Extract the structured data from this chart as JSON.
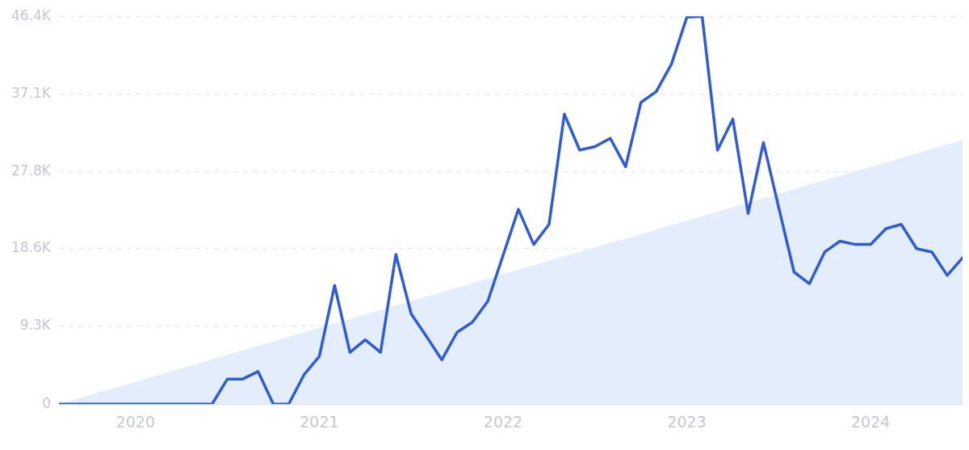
{
  "chart_data": {
    "type": "line",
    "x": [
      "2019-08",
      "2019-09",
      "2019-10",
      "2019-11",
      "2019-12",
      "2020-01",
      "2020-02",
      "2020-03",
      "2020-04",
      "2020-05",
      "2020-06",
      "2020-07",
      "2020-08",
      "2020-09",
      "2020-10",
      "2020-11",
      "2020-12",
      "2021-01",
      "2021-02",
      "2021-03",
      "2021-04",
      "2021-05",
      "2021-06",
      "2021-07",
      "2021-08",
      "2021-09",
      "2021-10",
      "2021-11",
      "2021-12",
      "2022-01",
      "2022-02",
      "2022-03",
      "2022-04",
      "2022-05",
      "2022-06",
      "2022-07",
      "2022-08",
      "2022-09",
      "2022-10",
      "2022-11",
      "2022-12",
      "2023-01",
      "2023-02",
      "2023-03",
      "2023-04",
      "2023-05",
      "2023-06",
      "2023-07",
      "2023-08",
      "2023-09",
      "2023-10",
      "2023-11",
      "2023-12",
      "2024-01",
      "2024-02",
      "2024-03",
      "2024-04",
      "2024-05",
      "2024-06",
      "2024-07"
    ],
    "series": [
      {
        "type": "area",
        "color": "#e3edfb",
        "x": [
          "2019-08",
          "2024-07"
        ],
        "values": [
          0,
          31600
        ]
      },
      {
        "type": "line",
        "color": "#2f5bd3",
        "values": [
          0,
          0,
          0,
          0,
          0,
          0,
          0,
          0,
          0,
          0,
          0,
          3000,
          3000,
          3900,
          0,
          0,
          3500,
          5700,
          14200,
          6200,
          7700,
          6200,
          17900,
          10800,
          8100,
          5300,
          8600,
          9800,
          12300,
          17800,
          23300,
          19100,
          21500,
          34700,
          30400,
          30800,
          31800,
          28400,
          36100,
          37400,
          40700,
          46300,
          46400,
          30400,
          34100,
          22800,
          31300,
          23500,
          15800,
          14400,
          18200,
          19500,
          19100,
          19100,
          21000,
          21500,
          18600,
          18200,
          15400,
          17500
        ]
      }
    ],
    "xlim": [
      "2019-08",
      "2024-07"
    ],
    "xticks": [
      "2020",
      "2021",
      "2022",
      "2023",
      "2024"
    ],
    "ylim": [
      0,
      46400
    ],
    "yticks": [
      0,
      {
        "value": 9300,
        "label": "9.3K"
      },
      {
        "value": 18600,
        "label": "18.6K"
      },
      {
        "value": 27800,
        "label": "27.8K"
      },
      {
        "value": 37100,
        "label": "37.1K"
      },
      {
        "value": 46400,
        "label": "46.4K"
      }
    ],
    "grid": "y",
    "legend": false,
    "marker": "none",
    "line_style": "solid"
  }
}
